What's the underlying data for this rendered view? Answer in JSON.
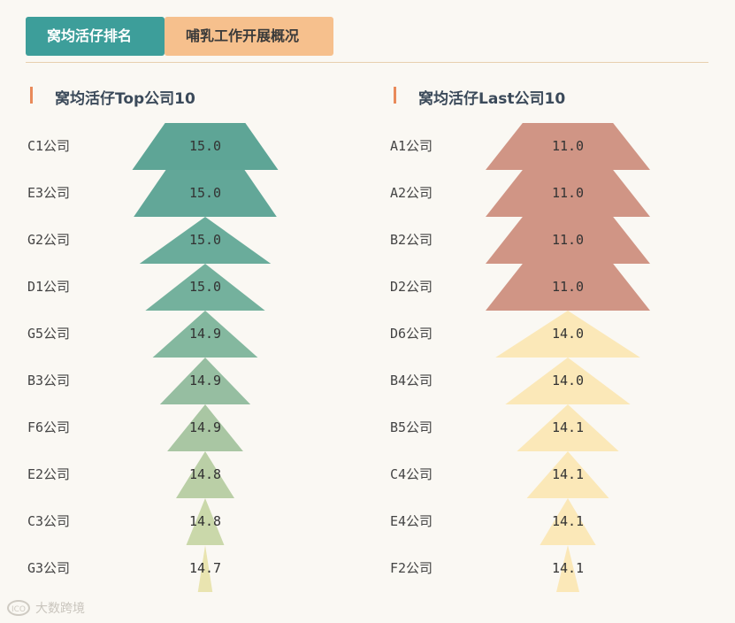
{
  "tabs": [
    {
      "label": "窝均活仔排名",
      "active": true
    },
    {
      "label": "哺乳工作开展概况",
      "active": false
    }
  ],
  "watermark": {
    "logo": "ICO",
    "text": "大数跨境"
  },
  "colors": {
    "accent_bar": "#e98a5a",
    "tab_active": "#3d9e9a",
    "tab_inactive": "#f6c08d"
  },
  "chart_data": [
    {
      "type": "bar",
      "title": "窝均活仔Top公司10",
      "categories": [
        "C1公司",
        "E3公司",
        "G2公司",
        "D1公司",
        "G5公司",
        "B3公司",
        "F6公司",
        "E2公司",
        "C3公司",
        "G3公司"
      ],
      "values": [
        15.0,
        15.0,
        15.0,
        15.0,
        14.9,
        14.9,
        14.9,
        14.8,
        14.8,
        14.7
      ],
      "value_labels": [
        "15.0",
        "15.0",
        "15.0",
        "15.0",
        "14.9",
        "14.9",
        "14.9",
        "14.8",
        "14.8",
        "14.7"
      ],
      "widths": [
        1.0,
        0.98,
        0.9,
        0.82,
        0.72,
        0.62,
        0.52,
        0.4,
        0.26,
        0.1
      ],
      "colors": [
        "#5ea596",
        "#62a798",
        "#6aac9b",
        "#74b19d",
        "#84b89f",
        "#96bea1",
        "#a9c6a3",
        "#bacfa6",
        "#cad8aa",
        "#e9e4b0"
      ],
      "shape": "trapezoid-to-triangle"
    },
    {
      "type": "bar",
      "title": "窝均活仔Last公司10",
      "categories": [
        "A1公司",
        "A2公司",
        "B2公司",
        "D2公司",
        "D6公司",
        "B4公司",
        "B5公司",
        "C4公司",
        "E4公司",
        "F2公司"
      ],
      "values": [
        11.0,
        11.0,
        11.0,
        11.0,
        14.0,
        14.0,
        14.1,
        14.1,
        14.1,
        14.1
      ],
      "value_labels": [
        "11.0",
        "11.0",
        "11.0",
        "11.0",
        "14.0",
        "14.0",
        "14.1",
        "14.1",
        "14.1",
        "14.1"
      ],
      "widths": [
        1.0,
        1.0,
        1.0,
        1.0,
        0.88,
        0.76,
        0.62,
        0.5,
        0.34,
        0.14
      ],
      "colors": [
        "#d09585",
        "#d09585",
        "#d09585",
        "#d09585",
        "#fbe8b8",
        "#fbe8b8",
        "#fbe8b8",
        "#fbe8b8",
        "#fbe8b8",
        "#fbe8b8"
      ],
      "shape": "trapezoid-to-triangle"
    }
  ]
}
